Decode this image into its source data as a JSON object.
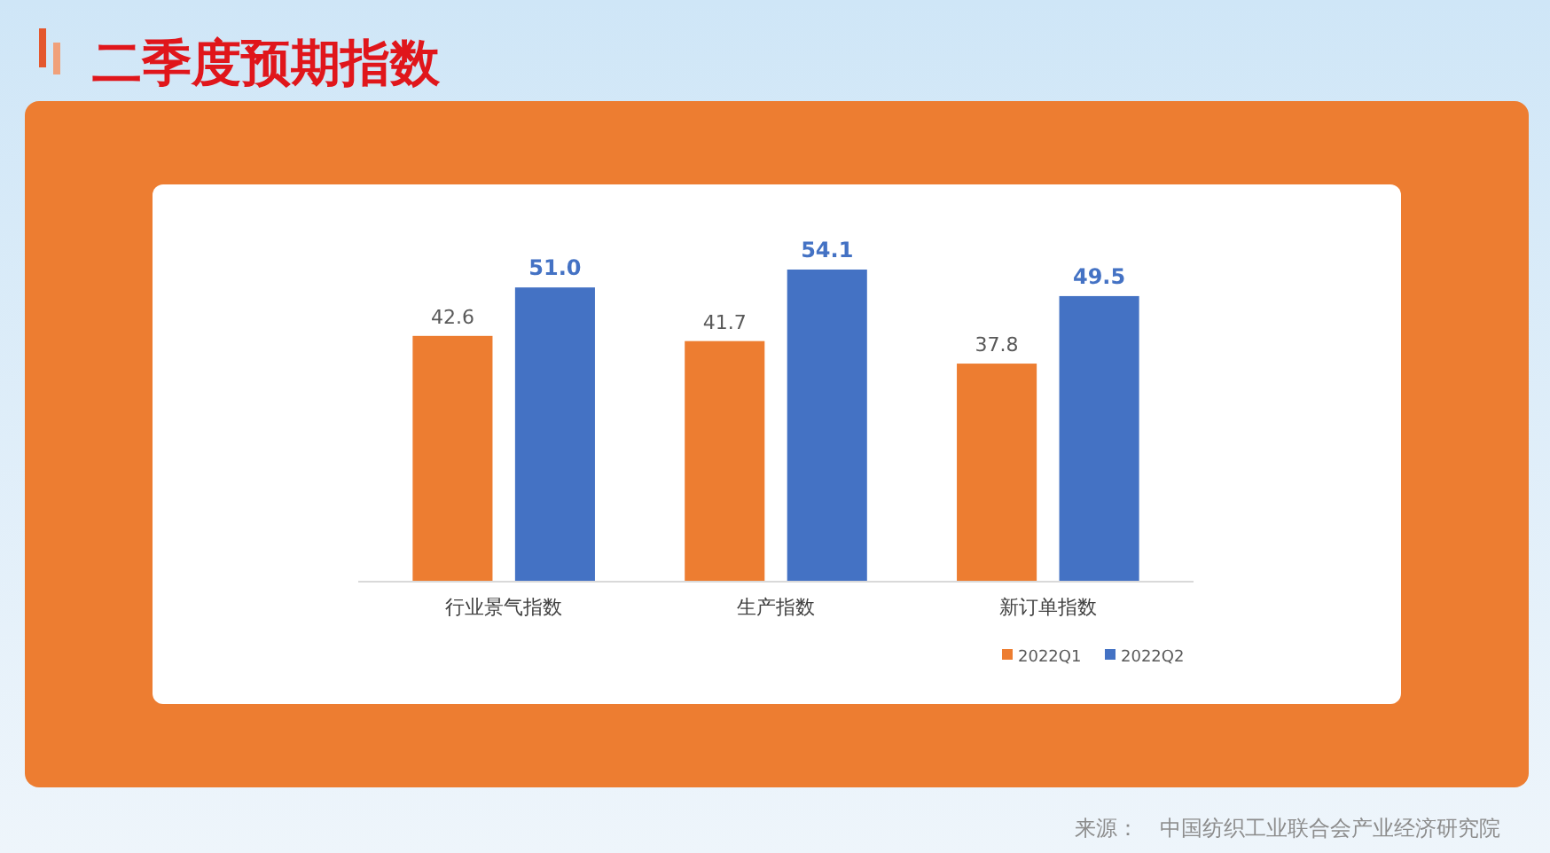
{
  "chart_data": {
    "type": "bar",
    "title": "二季度预期指数",
    "categories": [
      "行业景气指数",
      "生产指数",
      "新订单指数"
    ],
    "series": [
      {
        "name": "2022Q1",
        "color": "#ed7d31",
        "values": [
          42.6,
          41.7,
          37.8
        ],
        "value_labels": [
          "42.6",
          "41.7",
          "37.8"
        ]
      },
      {
        "name": "2022Q2",
        "color": "#4472c4",
        "values": [
          51.0,
          54.1,
          49.5
        ],
        "value_labels": [
          "51.0",
          "54.1",
          "49.5"
        ]
      }
    ],
    "legend": "bottom right",
    "grid": false,
    "annotations": [
      "来源：　中国纺织工业联合会产业经济研究院"
    ]
  }
}
